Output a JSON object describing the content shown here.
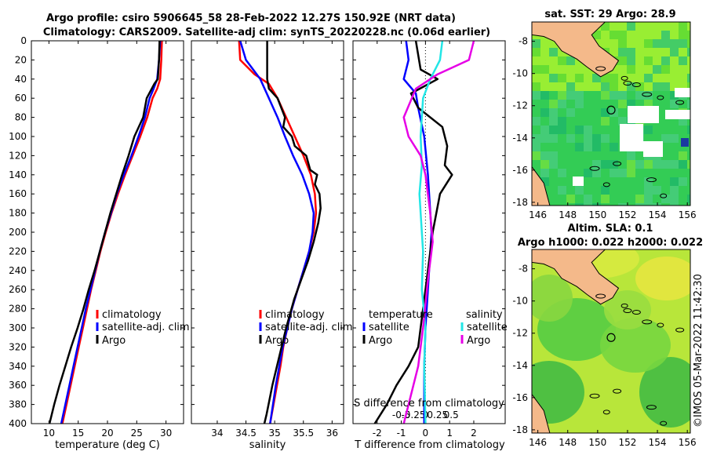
{
  "title": {
    "line1": "Argo profile: csiro 5906645_58 28-Feb-2022 12.27S 150.92E (NRT data)",
    "line2": "Climatology: CARS2009. Satellite-adj clim: synTS_20220228.nc (0.06d earlier)"
  },
  "colors": {
    "climatology": "#ff0000",
    "satellite": "#0000ff",
    "argo": "#000000",
    "salinity_sat": "#22e6e6",
    "salinity_argo": "#e600e6",
    "land": "#f4b98a"
  },
  "chart_data": [
    {
      "type": "line",
      "id": "temperature",
      "xlabel": "temperature (deg C)",
      "ylabel": "",
      "xlim": [
        7,
        33
      ],
      "ylim": [
        400,
        0
      ],
      "xticks": [
        10,
        15,
        20,
        25,
        30
      ],
      "yticks": [
        0,
        20,
        40,
        60,
        80,
        100,
        120,
        140,
        160,
        180,
        200,
        220,
        240,
        260,
        280,
        300,
        320,
        340,
        360,
        380,
        400
      ],
      "legend": [
        "climatology",
        "satellite-adj. clim",
        "Argo"
      ],
      "series": [
        {
          "name": "climatology",
          "points": [
            [
              29.3,
              0
            ],
            [
              29.2,
              20
            ],
            [
              29.0,
              40
            ],
            [
              28.5,
              50
            ],
            [
              27.7,
              60
            ],
            [
              26.8,
              80
            ],
            [
              25.6,
              100
            ],
            [
              24.3,
              120
            ],
            [
              23.0,
              140
            ],
            [
              21.8,
              160
            ],
            [
              20.7,
              180
            ],
            [
              19.7,
              200
            ],
            [
              18.8,
              220
            ],
            [
              18.0,
              240
            ],
            [
              17.2,
              260
            ],
            [
              16.5,
              280
            ],
            [
              15.8,
              300
            ],
            [
              15.1,
              320
            ],
            [
              14.4,
              340
            ],
            [
              13.7,
              360
            ],
            [
              13.0,
              380
            ],
            [
              12.3,
              400
            ]
          ]
        },
        {
          "name": "satellite",
          "points": [
            [
              29.0,
              0
            ],
            [
              28.8,
              20
            ],
            [
              28.5,
              40
            ],
            [
              27.9,
              50
            ],
            [
              27.2,
              60
            ],
            [
              26.4,
              80
            ],
            [
              25.3,
              100
            ],
            [
              24.1,
              120
            ],
            [
              22.8,
              140
            ],
            [
              21.6,
              160
            ],
            [
              20.6,
              180
            ],
            [
              19.6,
              200
            ],
            [
              18.7,
              220
            ],
            [
              17.9,
              240
            ],
            [
              17.1,
              260
            ],
            [
              16.3,
              280
            ],
            [
              15.6,
              300
            ],
            [
              14.9,
              320
            ],
            [
              14.2,
              340
            ],
            [
              13.5,
              360
            ],
            [
              12.8,
              380
            ],
            [
              12.1,
              400
            ]
          ]
        },
        {
          "name": "Argo",
          "points": [
            [
              28.9,
              0
            ],
            [
              28.8,
              20
            ],
            [
              28.6,
              40
            ],
            [
              28.0,
              45
            ],
            [
              26.7,
              60
            ],
            [
              26.1,
              80
            ],
            [
              24.6,
              100
            ],
            [
              23.6,
              120
            ],
            [
              22.5,
              140
            ],
            [
              21.5,
              160
            ],
            [
              20.5,
              180
            ],
            [
              19.6,
              200
            ],
            [
              18.7,
              220
            ],
            [
              17.8,
              240
            ],
            [
              16.8,
              260
            ],
            [
              15.9,
              280
            ],
            [
              14.9,
              300
            ],
            [
              13.8,
              320
            ],
            [
              12.8,
              340
            ],
            [
              11.8,
              360
            ],
            [
              10.9,
              380
            ],
            [
              10.1,
              400
            ]
          ]
        }
      ]
    },
    {
      "type": "line",
      "id": "salinity",
      "xlabel": "salinity",
      "ylabel": "",
      "xlim": [
        33.55,
        36.2
      ],
      "ylim": [
        400,
        0
      ],
      "xticks": [
        34,
        34.5,
        35,
        35.5,
        36
      ],
      "legend": [
        "climatology",
        "satellite-adj. clim",
        "Argo"
      ],
      "series": [
        {
          "name": "climatology",
          "points": [
            [
              34.38,
              0
            ],
            [
              34.4,
              20
            ],
            [
              34.65,
              35
            ],
            [
              34.9,
              45
            ],
            [
              35.05,
              60
            ],
            [
              35.2,
              80
            ],
            [
              35.35,
              100
            ],
            [
              35.5,
              120
            ],
            [
              35.63,
              140
            ],
            [
              35.7,
              160
            ],
            [
              35.72,
              180
            ],
            [
              35.68,
              200
            ],
            [
              35.6,
              220
            ],
            [
              35.5,
              240
            ],
            [
              35.4,
              260
            ],
            [
              35.3,
              280
            ],
            [
              35.22,
              300
            ],
            [
              35.15,
              320
            ],
            [
              35.1,
              340
            ],
            [
              35.04,
              360
            ],
            [
              34.98,
              380
            ],
            [
              34.92,
              400
            ]
          ]
        },
        {
          "name": "satellite",
          "points": [
            [
              34.4,
              0
            ],
            [
              34.5,
              20
            ],
            [
              34.75,
              40
            ],
            [
              34.9,
              60
            ],
            [
              35.05,
              80
            ],
            [
              35.18,
              100
            ],
            [
              35.32,
              120
            ],
            [
              35.48,
              140
            ],
            [
              35.6,
              160
            ],
            [
              35.68,
              180
            ],
            [
              35.66,
              200
            ],
            [
              35.6,
              220
            ],
            [
              35.5,
              240
            ],
            [
              35.4,
              260
            ],
            [
              35.3,
              280
            ],
            [
              35.22,
              300
            ],
            [
              35.14,
              320
            ],
            [
              35.08,
              340
            ],
            [
              35.02,
              360
            ],
            [
              34.97,
              380
            ],
            [
              34.92,
              400
            ]
          ]
        },
        {
          "name": "Argo",
          "points": [
            [
              34.87,
              0
            ],
            [
              34.87,
              40
            ],
            [
              34.9,
              50
            ],
            [
              35.05,
              60
            ],
            [
              35.18,
              80
            ],
            [
              35.15,
              90
            ],
            [
              35.3,
              100
            ],
            [
              35.35,
              110
            ],
            [
              35.55,
              120
            ],
            [
              35.62,
              135
            ],
            [
              35.74,
              140
            ],
            [
              35.7,
              150
            ],
            [
              35.78,
              160
            ],
            [
              35.8,
              175
            ],
            [
              35.76,
              190
            ],
            [
              35.68,
              210
            ],
            [
              35.58,
              230
            ],
            [
              35.46,
              250
            ],
            [
              35.34,
              270
            ],
            [
              35.2,
              300
            ],
            [
              35.08,
              330
            ],
            [
              34.96,
              360
            ],
            [
              34.86,
              390
            ],
            [
              34.82,
              400
            ]
          ]
        }
      ]
    },
    {
      "type": "line",
      "id": "differences",
      "xlabel": "T difference from climatology",
      "x2label": "S difference from climatology",
      "xlim": [
        -3,
        3.3
      ],
      "ylim": [
        400,
        0
      ],
      "xticks": [
        -2,
        -1,
        0,
        1,
        2
      ],
      "x2ticks": [
        "-0.5",
        "-0.25",
        "0",
        "0.25",
        "0.5"
      ],
      "legend_t_title": "temperature",
      "legend_s_title": "salinity",
      "legend": [
        "satellite",
        "Argo",
        "satellite",
        "Argo"
      ],
      "series": [
        {
          "name": "T satellite",
          "points": [
            [
              -0.8,
              0
            ],
            [
              -0.7,
              20
            ],
            [
              -0.9,
              40
            ],
            [
              -0.4,
              55
            ],
            [
              -0.3,
              70
            ],
            [
              -0.05,
              100
            ],
            [
              0.1,
              140
            ],
            [
              0.25,
              200
            ],
            [
              0.1,
              260
            ],
            [
              0.0,
              300
            ],
            [
              -0.05,
              340
            ],
            [
              -0.05,
              400
            ]
          ]
        },
        {
          "name": "T Argo",
          "points": [
            [
              -0.4,
              0
            ],
            [
              -0.2,
              30
            ],
            [
              0.5,
              40
            ],
            [
              -0.6,
              55
            ],
            [
              -0.3,
              70
            ],
            [
              0.7,
              90
            ],
            [
              0.9,
              110
            ],
            [
              0.8,
              130
            ],
            [
              1.1,
              140
            ],
            [
              0.6,
              160
            ],
            [
              0.3,
              200
            ],
            [
              0.1,
              240
            ],
            [
              -0.1,
              280
            ],
            [
              -0.3,
              320
            ],
            [
              -0.7,
              340
            ],
            [
              -1.2,
              360
            ],
            [
              -1.6,
              380
            ],
            [
              -2.1,
              400
            ]
          ]
        },
        {
          "name": "S satellite",
          "points": [
            [
              0.7,
              0
            ],
            [
              0.6,
              20
            ],
            [
              0.2,
              40
            ],
            [
              -0.1,
              60
            ],
            [
              -0.2,
              100
            ],
            [
              -0.15,
              130
            ],
            [
              -0.25,
              160
            ],
            [
              -0.1,
              220
            ],
            [
              -0.15,
              260
            ],
            [
              0.0,
              300
            ],
            [
              -0.05,
              340
            ],
            [
              0.0,
              400
            ]
          ]
        },
        {
          "name": "S Argo",
          "points": [
            [
              2.0,
              0
            ],
            [
              1.8,
              20
            ],
            [
              0.5,
              35
            ],
            [
              -0.4,
              50
            ],
            [
              -0.9,
              80
            ],
            [
              -0.7,
              100
            ],
            [
              -0.2,
              120
            ],
            [
              0.0,
              140
            ],
            [
              0.2,
              180
            ],
            [
              0.3,
              210
            ],
            [
              0.1,
              250
            ],
            [
              -0.1,
              300
            ],
            [
              -0.3,
              340
            ],
            [
              -0.6,
              370
            ],
            [
              -0.9,
              400
            ]
          ]
        }
      ]
    },
    {
      "type": "heatmap",
      "id": "sst_map",
      "title": "sat. SST: 29 Argo: 28.9",
      "xticks": [
        146,
        148,
        150,
        152,
        154,
        156
      ],
      "yticks": [
        -8,
        -10,
        -12,
        -14,
        -16,
        -18
      ],
      "xlim": [
        145.6,
        156.2
      ],
      "ylim": [
        -18.2,
        -6.8
      ],
      "argo_position": [
        150.9,
        -12.27
      ]
    },
    {
      "type": "heatmap",
      "id": "sla_map",
      "title": "Altim. SLA: 0.1",
      "subtitle": "Argo h1000: 0.022 h2000: 0.022",
      "xticks": [
        146,
        148,
        150,
        152,
        154,
        156
      ],
      "yticks": [
        -8,
        -10,
        -12,
        -14,
        -16,
        -18
      ],
      "xlim": [
        145.6,
        156.2
      ],
      "ylim": [
        -18.2,
        -6.8
      ],
      "argo_position": [
        150.9,
        -12.27
      ]
    }
  ],
  "watermark": "©IMOS 05-Mar-2022 11:42:30"
}
